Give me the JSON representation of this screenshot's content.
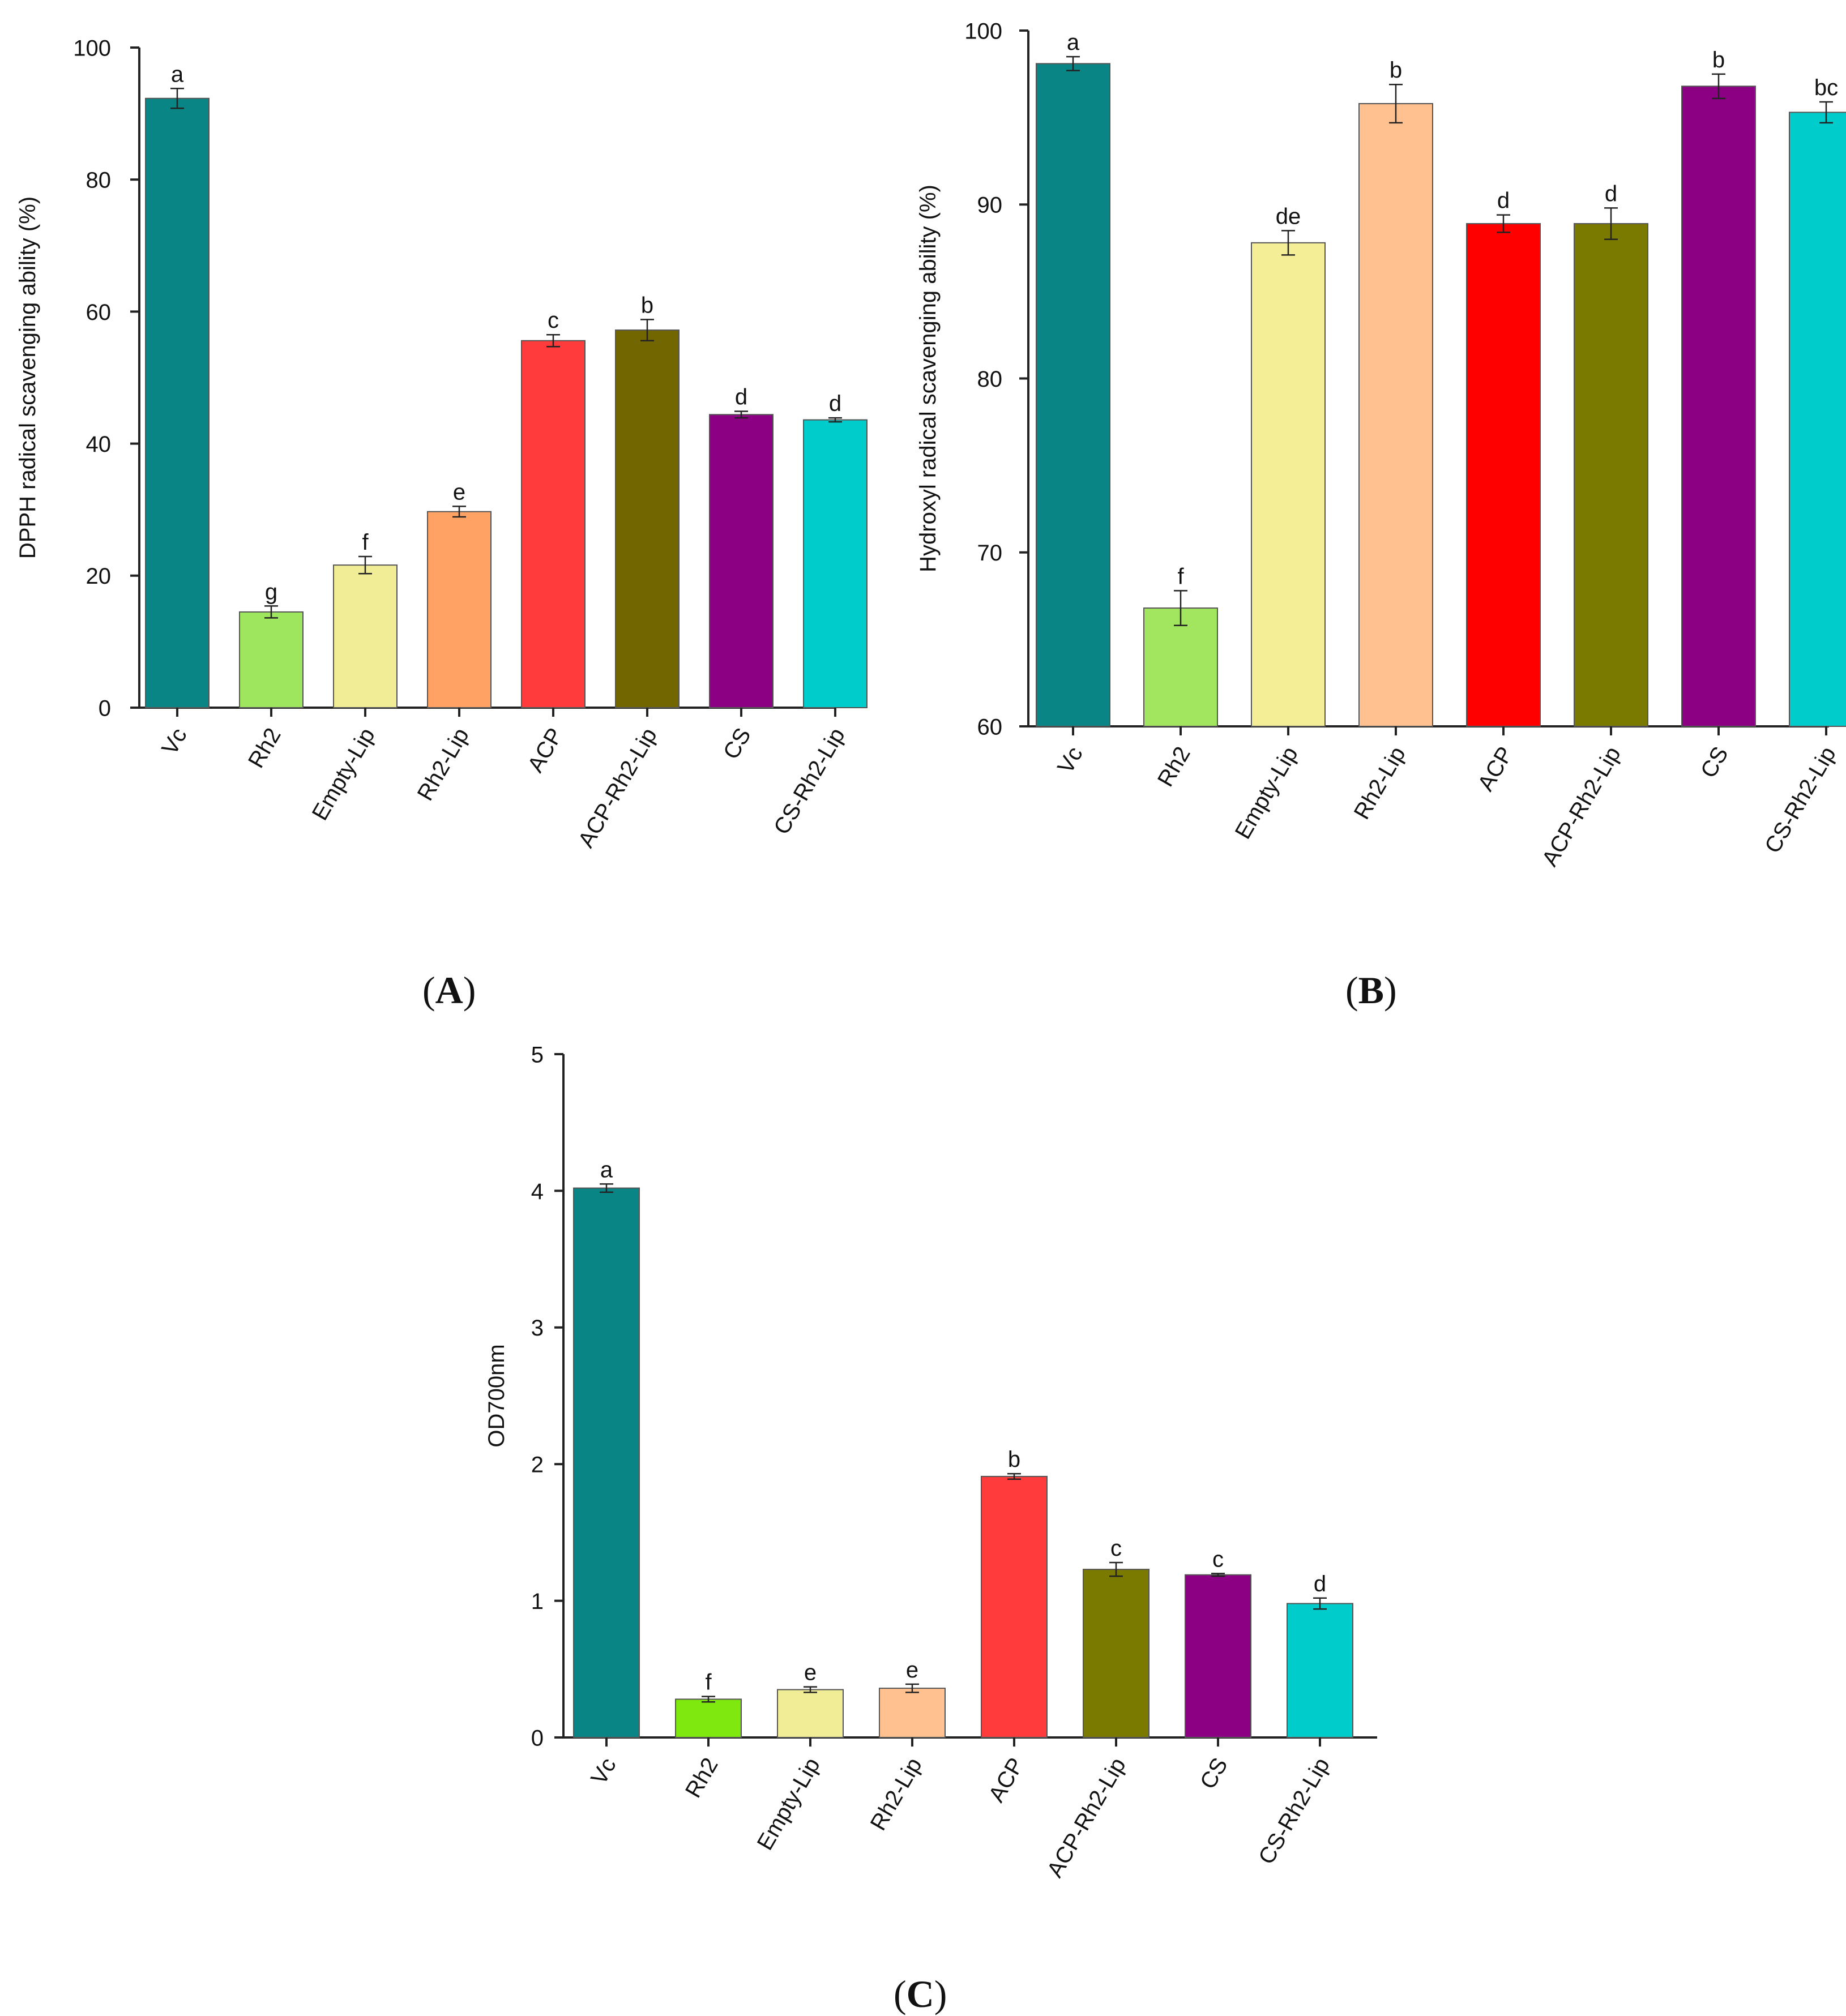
{
  "chart_data": [
    {
      "type": "bar",
      "panel_label": "(A)",
      "ylabel": "DPPH radical scavenging ability   (%)",
      "xlabel": "",
      "ylim": [
        0,
        100
      ],
      "yticks": [
        0,
        20,
        40,
        60,
        80,
        100
      ],
      "categories": [
        "Vc",
        "Rh2",
        "Empty-Lip",
        "Rh2-Lip",
        "ACP",
        "ACP-Rh2-Lip",
        "CS",
        "CS-Rh2-Lip"
      ],
      "values": [
        92.3,
        14.5,
        21.6,
        29.7,
        55.6,
        57.2,
        44.4,
        43.6
      ],
      "errors": [
        1.5,
        0.9,
        1.3,
        0.8,
        0.9,
        1.6,
        0.5,
        0.3
      ],
      "letters": [
        "a",
        "g",
        "f",
        "e",
        "c",
        "b",
        "d",
        "d"
      ],
      "colors": [
        "#0a8585",
        "#9fe65f",
        "#f1ec96",
        "#ffa264",
        "#ff3b3b",
        "#726600",
        "#8c0083",
        "#00cccc"
      ]
    },
    {
      "type": "bar",
      "panel_label": "(B)",
      "ylabel": "Hydroxyl radical scavenging ability  (%)",
      "xlabel": "",
      "ylim": [
        60,
        100
      ],
      "yticks": [
        60,
        70,
        80,
        90,
        100
      ],
      "categories": [
        "Vc",
        "Rh2",
        "Empty-Lip",
        "Rh2-Lip",
        "ACP",
        "ACP-Rh2-Lip",
        "CS",
        "CS-Rh2-Lip"
      ],
      "values": [
        98.1,
        66.8,
        87.8,
        95.8,
        88.9,
        88.9,
        96.8,
        95.3
      ],
      "errors": [
        0.4,
        1.0,
        0.7,
        1.1,
        0.5,
        0.9,
        0.7,
        0.6
      ],
      "letters": [
        "a",
        "f",
        "de",
        "b",
        "d",
        "d",
        "b",
        "bc"
      ],
      "colors": [
        "#0a8585",
        "#a2e65f",
        "#f4ee96",
        "#ffc18f",
        "#ff0000",
        "#7a7900",
        "#8c0083",
        "#00cccc"
      ]
    },
    {
      "type": "bar",
      "panel_label": "(C)",
      "ylabel": "OD700nm",
      "xlabel": "",
      "ylim": [
        0,
        5
      ],
      "yticks": [
        0,
        1,
        2,
        3,
        4,
        5
      ],
      "categories": [
        "Vc",
        "Rh2",
        "Empty-Lip",
        "Rh2-Lip",
        "ACP",
        "ACP-Rh2-Lip",
        "CS",
        "CS-Rh2-Lip"
      ],
      "values": [
        4.02,
        0.28,
        0.35,
        0.36,
        1.91,
        1.23,
        1.19,
        0.98
      ],
      "errors": [
        0.03,
        0.02,
        0.02,
        0.03,
        0.02,
        0.05,
        0.01,
        0.04
      ],
      "letters": [
        "a",
        "f",
        "e",
        "e",
        "b",
        "c",
        "c",
        "d"
      ],
      "colors": [
        "#0a8585",
        "#7fe80e",
        "#f1ec96",
        "#ffc18f",
        "#ff3b3b",
        "#7a7900",
        "#8c0083",
        "#00cccc"
      ]
    }
  ]
}
